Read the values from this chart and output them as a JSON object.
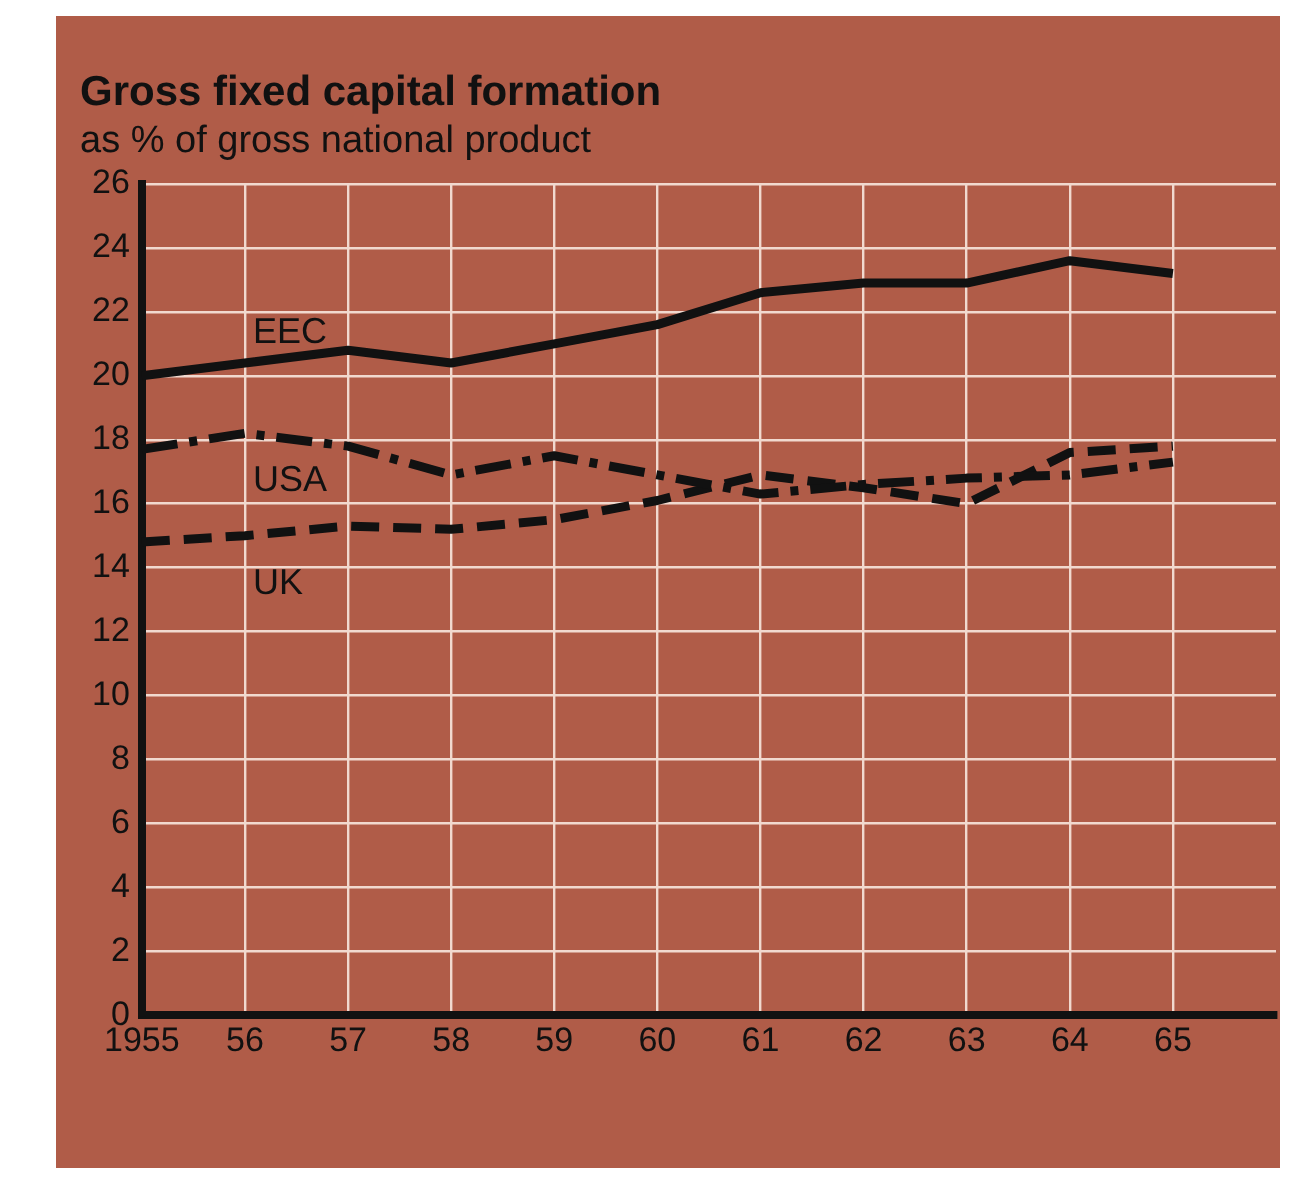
{
  "chart_data": {
    "type": "line",
    "title": "Gross fixed capital formation",
    "subtitle": "as % of gross national product",
    "x": [
      1955,
      1956,
      1957,
      1958,
      1959,
      1960,
      1961,
      1962,
      1963,
      1964,
      1965
    ],
    "series": [
      {
        "name": "EEC",
        "color": "#111111",
        "line_style": "solid",
        "values": [
          20.0,
          20.4,
          20.8,
          20.4,
          21.0,
          21.6,
          22.6,
          22.9,
          22.9,
          23.6,
          23.2
        ]
      },
      {
        "name": "USA",
        "color": "#111111",
        "line_style": "dashdot",
        "values": [
          17.7,
          18.2,
          17.8,
          16.9,
          17.5,
          16.9,
          16.3,
          16.6,
          16.8,
          16.9,
          17.3
        ]
      },
      {
        "name": "UK",
        "color": "#111111",
        "line_style": "dashed",
        "values": [
          14.8,
          15.0,
          15.3,
          15.2,
          15.5,
          16.1,
          16.9,
          16.5,
          16.0,
          17.6,
          17.8
        ]
      }
    ],
    "xlim": [
      1955,
      1966
    ],
    "xticks": [
      {
        "value": 1955,
        "label": "1955"
      },
      {
        "value": 1956,
        "label": "56"
      },
      {
        "value": 1957,
        "label": "57"
      },
      {
        "value": 1958,
        "label": "58"
      },
      {
        "value": 1959,
        "label": "59"
      },
      {
        "value": 1960,
        "label": "60"
      },
      {
        "value": 1961,
        "label": "61"
      },
      {
        "value": 1962,
        "label": "62"
      },
      {
        "value": 1963,
        "label": "63"
      },
      {
        "value": 1964,
        "label": "64"
      },
      {
        "value": 1965,
        "label": "65"
      }
    ],
    "ylim": [
      0,
      26
    ],
    "yticks": [
      0,
      2,
      4,
      6,
      8,
      10,
      12,
      14,
      16,
      18,
      20,
      22,
      24,
      26
    ],
    "grid": true,
    "legend": false,
    "marker": "none"
  }
}
